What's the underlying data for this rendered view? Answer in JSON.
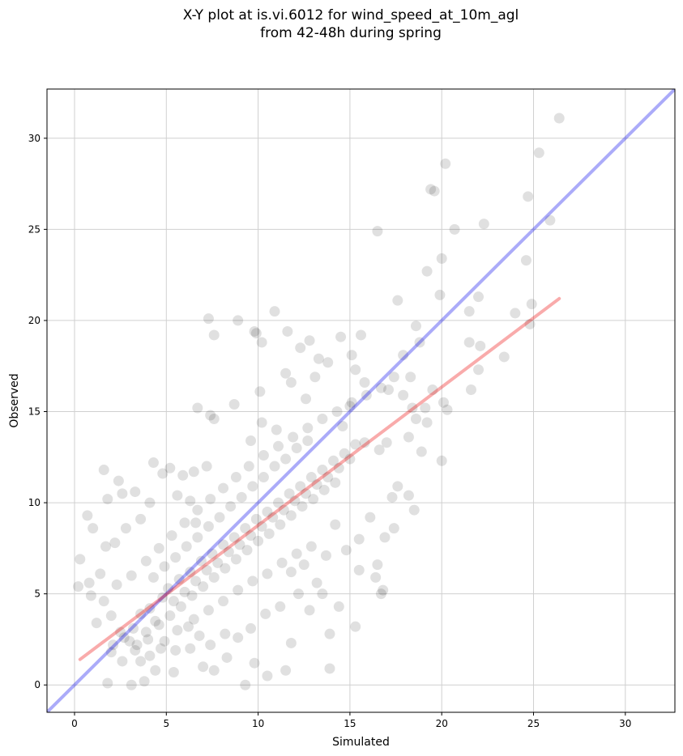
{
  "chart_data": {
    "type": "scatter",
    "title": "X-Y plot at is.vi.6012 for wind_speed_at_10m_agl",
    "subtitle": "from 42-48h during spring",
    "xlabel": "Simulated",
    "ylabel": "Observed",
    "xlim": [
      -1.5,
      32.7
    ],
    "ylim": [
      -1.5,
      32.7
    ],
    "xticks": [
      0,
      5,
      10,
      15,
      20,
      25,
      30
    ],
    "yticks": [
      0,
      5,
      10,
      15,
      20,
      25,
      30
    ],
    "grid": true,
    "colors": {
      "points": "#000000",
      "identity_line": "#0000ee",
      "fit_line": "#ee0000",
      "grid": "#d0d0d0"
    },
    "series": [
      {
        "kind": "scatter",
        "points": [
          [
            0.3,
            6.9
          ],
          [
            0.2,
            5.4
          ],
          [
            0.7,
            9.3
          ],
          [
            0.8,
            5.6
          ],
          [
            1.6,
            11.8
          ],
          [
            1.8,
            10.2
          ],
          [
            2.4,
            11.2
          ],
          [
            2.6,
            10.5
          ],
          [
            3.3,
            10.6
          ],
          [
            4.3,
            12.2
          ],
          [
            4.8,
            11.6
          ],
          [
            5.2,
            11.9
          ],
          [
            5.9,
            11.5
          ],
          [
            6.5,
            11.7
          ],
          [
            7.2,
            12.0
          ],
          [
            7.3,
            20.1
          ],
          [
            7.6,
            19.2
          ],
          [
            6.7,
            15.2
          ],
          [
            7.4,
            14.8
          ],
          [
            7.6,
            14.6
          ],
          [
            8.7,
            15.4
          ],
          [
            8.9,
            20.0
          ],
          [
            9.8,
            19.4
          ],
          [
            9.9,
            19.3
          ],
          [
            10.2,
            18.8
          ],
          [
            10.1,
            16.1
          ],
          [
            10.9,
            20.5
          ],
          [
            11.6,
            19.4
          ],
          [
            11.5,
            17.1
          ],
          [
            12.3,
            18.5
          ],
          [
            12.8,
            18.9
          ],
          [
            13.3,
            17.9
          ],
          [
            13.8,
            17.7
          ],
          [
            14.5,
            19.1
          ],
          [
            15.1,
            18.1
          ],
          [
            15.6,
            19.2
          ],
          [
            15.3,
            17.3
          ],
          [
            15.8,
            16.6
          ],
          [
            16.5,
            24.9
          ],
          [
            17.1,
            16.2
          ],
          [
            17.6,
            21.1
          ],
          [
            17.9,
            18.1
          ],
          [
            18.3,
            16.9
          ],
          [
            18.6,
            19.7
          ],
          [
            18.8,
            18.8
          ],
          [
            19.2,
            22.7
          ],
          [
            19.4,
            27.2
          ],
          [
            19.6,
            27.1
          ],
          [
            19.9,
            21.4
          ],
          [
            20.0,
            23.4
          ],
          [
            20.2,
            28.6
          ],
          [
            20.7,
            25.0
          ],
          [
            20.3,
            15.1
          ],
          [
            20.0,
            12.3
          ],
          [
            21.5,
            20.5
          ],
          [
            21.6,
            16.2
          ],
          [
            22.0,
            21.3
          ],
          [
            22.1,
            18.6
          ],
          [
            22.3,
            25.3
          ],
          [
            22.0,
            17.3
          ],
          [
            23.4,
            18.0
          ],
          [
            24.0,
            20.4
          ],
          [
            24.6,
            23.3
          ],
          [
            24.7,
            26.8
          ],
          [
            24.8,
            19.8
          ],
          [
            25.3,
            29.2
          ],
          [
            25.9,
            25.5
          ],
          [
            26.4,
            31.1
          ],
          [
            24.9,
            20.9
          ],
          [
            21.5,
            18.8
          ],
          [
            19.1,
            15.2
          ],
          [
            18.6,
            14.6
          ],
          [
            18.2,
            13.6
          ],
          [
            18.9,
            12.8
          ],
          [
            18.5,
            9.6
          ],
          [
            18.2,
            10.4
          ],
          [
            17.6,
            10.9
          ],
          [
            17.4,
            8.6
          ],
          [
            16.9,
            8.1
          ],
          [
            16.8,
            5.2
          ],
          [
            16.5,
            6.6
          ],
          [
            16.7,
            5.0
          ],
          [
            16.4,
            5.9
          ],
          [
            15.3,
            3.2
          ],
          [
            15.5,
            6.3
          ],
          [
            14.4,
            4.3
          ],
          [
            13.9,
            2.8
          ],
          [
            13.9,
            0.9
          ],
          [
            13.5,
            5.0
          ],
          [
            12.8,
            4.1
          ],
          [
            12.2,
            5.0
          ],
          [
            11.8,
            2.3
          ],
          [
            11.5,
            0.8
          ],
          [
            10.5,
            0.5
          ],
          [
            9.8,
            1.2
          ],
          [
            9.3,
            0.0
          ],
          [
            8.3,
            1.5
          ],
          [
            7.6,
            0.8
          ],
          [
            7.0,
            1.0
          ],
          [
            6.3,
            2.0
          ],
          [
            5.4,
            0.7
          ],
          [
            4.4,
            0.8
          ],
          [
            3.8,
            0.2
          ],
          [
            3.1,
            0.0
          ],
          [
            1.8,
            0.1
          ],
          [
            2.1,
            2.2
          ],
          [
            1.2,
            3.4
          ],
          [
            0.9,
            4.9
          ],
          [
            1.4,
            6.1
          ],
          [
            1.0,
            8.6
          ],
          [
            1.7,
            7.6
          ],
          [
            2.2,
            7.8
          ],
          [
            2.8,
            8.6
          ],
          [
            3.6,
            9.1
          ],
          [
            4.1,
            10.0
          ],
          [
            5.6,
            10.4
          ],
          [
            6.3,
            10.1
          ],
          [
            6.6,
            8.9
          ],
          [
            9.6,
            13.4
          ],
          [
            10.2,
            14.4
          ],
          [
            11.0,
            14.0
          ],
          [
            11.8,
            16.6
          ],
          [
            12.6,
            15.7
          ],
          [
            13.1,
            16.9
          ],
          [
            14.6,
            14.2
          ],
          [
            15.0,
            15.3
          ],
          [
            15.8,
            13.3
          ],
          [
            16.6,
            12.9
          ],
          [
            17.0,
            13.3
          ],
          [
            17.3,
            10.3
          ],
          [
            16.1,
            9.2
          ],
          [
            15.5,
            8.0
          ],
          [
            14.8,
            7.4
          ],
          [
            14.2,
            8.8
          ],
          [
            13.7,
            7.1
          ],
          [
            13.2,
            5.6
          ],
          [
            12.5,
            6.6
          ],
          [
            11.8,
            6.2
          ],
          [
            11.2,
            4.3
          ],
          [
            10.4,
            3.9
          ],
          [
            9.6,
            3.1
          ],
          [
            8.9,
            2.6
          ],
          [
            8.2,
            2.8
          ],
          [
            7.4,
            2.2
          ],
          [
            6.8,
            2.7
          ],
          [
            6.2,
            3.2
          ],
          [
            5.5,
            1.9
          ],
          [
            4.9,
            2.4
          ],
          [
            4.1,
            1.6
          ],
          [
            3.6,
            1.3
          ],
          [
            3.0,
            2.4
          ],
          [
            2.5,
            2.9
          ],
          [
            2.0,
            3.8
          ],
          [
            1.6,
            4.6
          ],
          [
            2.3,
            5.5
          ],
          [
            3.1,
            6.0
          ],
          [
            3.9,
            6.8
          ],
          [
            4.6,
            7.5
          ],
          [
            5.3,
            8.2
          ],
          [
            6.0,
            8.9
          ],
          [
            6.7,
            9.6
          ],
          [
            7.4,
            10.2
          ],
          [
            8.1,
            10.8
          ],
          [
            8.8,
            11.4
          ],
          [
            9.5,
            12.0
          ],
          [
            10.3,
            12.6
          ],
          [
            11.1,
            13.1
          ],
          [
            11.9,
            13.6
          ],
          [
            12.7,
            14.1
          ],
          [
            13.5,
            14.6
          ],
          [
            14.3,
            15.0
          ],
          [
            15.1,
            15.5
          ],
          [
            15.9,
            15.9
          ],
          [
            16.7,
            16.3
          ],
          [
            17.4,
            16.9
          ],
          [
            17.9,
            15.9
          ],
          [
            18.4,
            15.2
          ],
          [
            19.2,
            14.4
          ],
          [
            19.5,
            16.2
          ],
          [
            20.1,
            15.5
          ],
          [
            3.2,
            3.1
          ],
          [
            3.6,
            3.9
          ],
          [
            4.1,
            4.2
          ],
          [
            4.4,
            3.5
          ],
          [
            4.8,
            4.8
          ],
          [
            5.1,
            5.3
          ],
          [
            5.4,
            4.6
          ],
          [
            5.7,
            5.8
          ],
          [
            6.0,
            5.1
          ],
          [
            6.3,
            6.2
          ],
          [
            6.6,
            5.7
          ],
          [
            6.9,
            6.8
          ],
          [
            7.2,
            6.3
          ],
          [
            7.5,
            7.2
          ],
          [
            7.8,
            6.7
          ],
          [
            8.1,
            7.7
          ],
          [
            8.4,
            7.3
          ],
          [
            8.7,
            8.1
          ],
          [
            9.0,
            7.7
          ],
          [
            9.3,
            8.6
          ],
          [
            9.6,
            8.2
          ],
          [
            9.9,
            9.1
          ],
          [
            10.2,
            8.7
          ],
          [
            10.5,
            9.5
          ],
          [
            10.8,
            9.2
          ],
          [
            11.1,
            10.0
          ],
          [
            11.4,
            9.6
          ],
          [
            11.7,
            10.5
          ],
          [
            12.0,
            10.1
          ],
          [
            12.3,
            10.9
          ],
          [
            12.6,
            10.5
          ],
          [
            12.9,
            11.4
          ],
          [
            13.2,
            11.0
          ],
          [
            13.5,
            11.8
          ],
          [
            13.8,
            11.4
          ],
          [
            14.1,
            12.3
          ],
          [
            14.4,
            11.9
          ],
          [
            14.7,
            12.7
          ],
          [
            15.0,
            12.4
          ],
          [
            15.3,
            13.2
          ],
          [
            2.7,
            2.6
          ],
          [
            3.4,
            2.2
          ],
          [
            3.9,
            2.9
          ],
          [
            4.6,
            3.3
          ],
          [
            5.2,
            3.8
          ],
          [
            5.8,
            4.3
          ],
          [
            6.4,
            4.9
          ],
          [
            7.0,
            5.4
          ],
          [
            7.6,
            5.9
          ],
          [
            8.2,
            6.4
          ],
          [
            8.8,
            6.9
          ],
          [
            9.4,
            7.4
          ],
          [
            10.0,
            7.9
          ],
          [
            10.6,
            8.3
          ],
          [
            11.2,
            8.8
          ],
          [
            11.8,
            9.3
          ],
          [
            12.4,
            9.8
          ],
          [
            13.0,
            10.2
          ],
          [
            13.6,
            10.7
          ],
          [
            14.2,
            11.1
          ],
          [
            4.3,
            5.9
          ],
          [
            4.9,
            6.5
          ],
          [
            5.5,
            7.0
          ],
          [
            6.1,
            7.6
          ],
          [
            6.7,
            8.1
          ],
          [
            7.3,
            8.7
          ],
          [
            7.9,
            9.2
          ],
          [
            8.5,
            9.8
          ],
          [
            9.1,
            10.3
          ],
          [
            9.7,
            10.9
          ],
          [
            10.3,
            11.4
          ],
          [
            10.9,
            12.0
          ],
          [
            11.5,
            12.4
          ],
          [
            12.1,
            13.0
          ],
          [
            12.7,
            13.4
          ],
          [
            2.0,
            1.8
          ],
          [
            2.6,
            1.3
          ],
          [
            3.3,
            1.9
          ],
          [
            4.0,
            2.5
          ],
          [
            4.7,
            2.0
          ],
          [
            5.6,
            3.0
          ],
          [
            6.5,
            3.6
          ],
          [
            7.3,
            4.1
          ],
          [
            8.1,
            4.6
          ],
          [
            8.9,
            5.2
          ],
          [
            9.7,
            5.7
          ],
          [
            10.5,
            6.1
          ],
          [
            11.3,
            6.7
          ],
          [
            12.1,
            7.2
          ],
          [
            12.9,
            7.6
          ]
        ]
      },
      {
        "kind": "line",
        "name": "",
        "points": [
          [
            -1.5,
            -1.5
          ],
          [
            32.7,
            32.7
          ]
        ]
      },
      {
        "kind": "line",
        "name": "",
        "points": [
          [
            0.3,
            1.4
          ],
          [
            26.4,
            21.2
          ]
        ]
      }
    ]
  }
}
